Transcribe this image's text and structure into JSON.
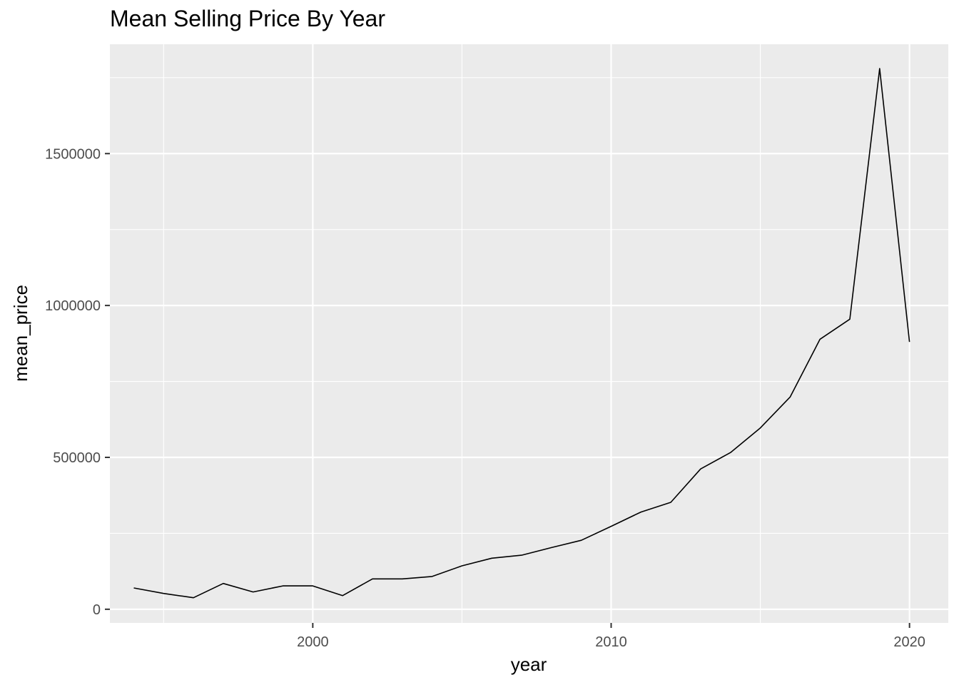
{
  "chart_data": {
    "type": "line",
    "title": "Mean Selling Price By Year",
    "xlabel": "year",
    "ylabel": "mean_price",
    "xlim": [
      1993.2,
      2021.3
    ],
    "ylim": [
      -45000,
      1860000
    ],
    "x_ticks": [
      2000,
      2010,
      2020
    ],
    "x_minor_ticks": [
      1995,
      2005,
      2015
    ],
    "y_ticks": [
      0,
      500000,
      1000000,
      1500000
    ],
    "y_tick_labels": [
      "0",
      "500000",
      "1000000",
      "1500000"
    ],
    "y_minor_ticks": [
      250000,
      750000,
      1250000,
      1750000
    ],
    "grid": true,
    "legend": "none",
    "colors": {
      "panel_background": "#ebebeb",
      "gridline": "#ffffff",
      "line": "#000000",
      "tick_label": "#4d4d4d"
    },
    "series": [
      {
        "x": [
          1994,
          1995,
          1996,
          1997,
          1998,
          1999,
          2000,
          2001,
          2002,
          2003,
          2004,
          2005,
          2006,
          2007,
          2008,
          2009,
          2010,
          2011,
          2012,
          2013,
          2014,
          2015,
          2016,
          2017,
          2018,
          2019,
          2020
        ],
        "values": [
          70000,
          52000,
          38000,
          85000,
          57000,
          77000,
          77000,
          45000,
          100000,
          100000,
          108000,
          143000,
          168000,
          178000,
          203000,
          227000,
          273000,
          320000,
          352000,
          462000,
          516000,
          597000,
          699000,
          889000,
          955000,
          1780000,
          880000
        ]
      }
    ]
  }
}
